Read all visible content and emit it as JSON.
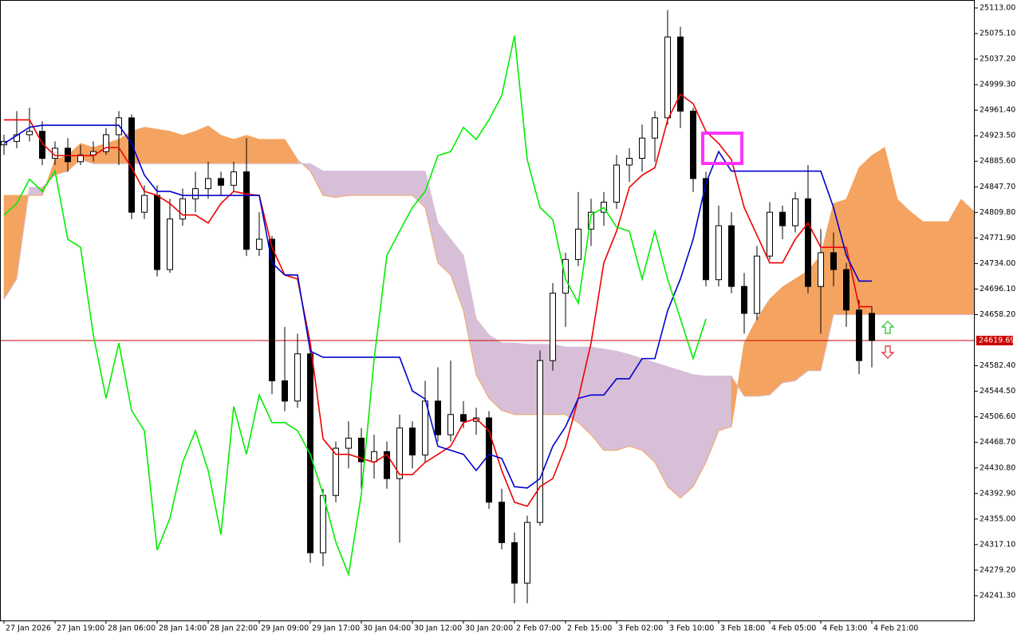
{
  "chart_data": {
    "type": "candlestick",
    "ylim": [
      24204.6,
      25124.8
    ],
    "yticks": [
      {
        "value": 25113,
        "label": "25113.00"
      },
      {
        "value": 25075.1,
        "label": "25075.10"
      },
      {
        "value": 25037.2,
        "label": "25037.20"
      },
      {
        "value": 24999.3,
        "label": "24999.30"
      },
      {
        "value": 24961.4,
        "label": "24961.40"
      },
      {
        "value": 24923.5,
        "label": "24923.50"
      },
      {
        "value": 24885.6,
        "label": "24885.60"
      },
      {
        "value": 24847.7,
        "label": "24847.70"
      },
      {
        "value": 24809.8,
        "label": "24809.80"
      },
      {
        "value": 24771.9,
        "label": "24771.90"
      },
      {
        "value": 24734,
        "label": "24734.00"
      },
      {
        "value": 24696.1,
        "label": "24696.10"
      },
      {
        "value": 24658.2,
        "label": "24658.20"
      },
      {
        "value": 24582.4,
        "label": "24582.40"
      },
      {
        "value": 24544.5,
        "label": "24544.50"
      },
      {
        "value": 24506.6,
        "label": "24506.60"
      },
      {
        "value": 24468.7,
        "label": "24468.70"
      },
      {
        "value": 24430.8,
        "label": "24430.80"
      },
      {
        "value": 24392.9,
        "label": "24392.90"
      },
      {
        "value": 24355,
        "label": "24355.00"
      },
      {
        "value": 24317.1,
        "label": "24317.10"
      },
      {
        "value": 24279.2,
        "label": "24279.20"
      },
      {
        "value": 24241.3,
        "label": "24241.30"
      }
    ],
    "current_price": 24619.69,
    "current_price_color": "#cc0000",
    "categories": [
      "27 Jan 2026",
      null,
      null,
      null,
      "27 Jan 19:00",
      null,
      null,
      null,
      "28 Jan 06:00",
      null,
      null,
      null,
      "28 Jan 14:00",
      null,
      null,
      null,
      "28 Jan 22:00",
      null,
      null,
      null,
      "29 Jan 09:00",
      null,
      null,
      null,
      "29 Jan 17:00",
      null,
      null,
      null,
      "30 Jan 04:00",
      null,
      null,
      null,
      "30 Jan 12:00",
      null,
      null,
      null,
      "30 Jan 20:00",
      null,
      null,
      null,
      "2 Feb 07:00",
      null,
      null,
      null,
      "2 Feb 15:00",
      null,
      null,
      null,
      "3 Feb 02:00",
      null,
      null,
      null,
      "3 Feb 10:00",
      null,
      null,
      null,
      "3 Feb 18:00",
      null,
      null,
      null,
      "4 Feb 05:00",
      null,
      null,
      null,
      "4 Feb 13:00",
      null,
      null,
      null,
      "4 Feb 21:00",
      null,
      null,
      null,
      null,
      null,
      null,
      null,
      null
    ],
    "open": [
      24910,
      24915,
      24925,
      24930,
      24890,
      24905,
      24885,
      24895,
      24900,
      24925,
      24950,
      24810,
      24835,
      24725,
      24800,
      24830,
      24845,
      24860,
      24850,
      24870,
      24755,
      24770,
      24560,
      24530,
      24600,
      24305,
      24390,
      24460,
      24475,
      24440,
      24455,
      24415,
      24490,
      24450,
      24530,
      24480,
      24510,
      24500,
      24505,
      24380,
      24320,
      24260,
      24350,
      24590,
      24690,
      24740,
      24785,
      24810,
      24825,
      24880,
      24890,
      24920,
      24950,
      25070,
      24960,
      24860,
      24710,
      24790,
      24700,
      24660,
      24745,
      24810,
      24790,
      24830,
      24700,
      24750,
      24725,
      24665,
      24660,
      null,
      null,
      null,
      null,
      null,
      null,
      null,
      null
    ],
    "high": [
      24925,
      24960,
      24965,
      24945,
      24915,
      24920,
      24910,
      24915,
      24935,
      24960,
      24955,
      24850,
      24850,
      24830,
      24845,
      24870,
      24885,
      24870,
      24885,
      24920,
      24810,
      24775,
      24640,
      24630,
      24610,
      24400,
      24470,
      24500,
      24490,
      24480,
      24470,
      24510,
      24500,
      24560,
      24580,
      24590,
      24530,
      24520,
      24515,
      24400,
      24335,
      24360,
      24605,
      24705,
      24750,
      24840,
      24830,
      24840,
      24895,
      24905,
      24940,
      24960,
      25110,
      25085,
      24965,
      24870,
      24820,
      24810,
      24720,
      24760,
      24825,
      24820,
      24840,
      24880,
      24785,
      24780,
      24735,
      24680,
      24670,
      null,
      null,
      null,
      null,
      null,
      null,
      null,
      null
    ],
    "low": [
      24895,
      24905,
      24915,
      24880,
      24880,
      24870,
      24880,
      24885,
      24895,
      24880,
      24800,
      24800,
      24715,
      24720,
      24790,
      24810,
      24830,
      24835,
      24840,
      24745,
      24745,
      24540,
      24515,
      24520,
      24290,
      24285,
      24380,
      24430,
      24400,
      24415,
      24400,
      24320,
      24430,
      24440,
      24470,
      24470,
      24490,
      24480,
      24370,
      24310,
      24230,
      24230,
      24345,
      24575,
      24640,
      24730,
      24760,
      24790,
      24815,
      24855,
      24870,
      24885,
      24940,
      24935,
      24840,
      24700,
      24700,
      24690,
      24630,
      24650,
      24740,
      24770,
      24780,
      24690,
      24630,
      24700,
      24640,
      24570,
      24580,
      null,
      null,
      null,
      null,
      null,
      null,
      null,
      null
    ],
    "close": [
      24915,
      24925,
      24930,
      24890,
      24905,
      24885,
      24895,
      24900,
      24925,
      24950,
      24810,
      24835,
      24725,
      24800,
      24830,
      24845,
      24860,
      24850,
      24870,
      24755,
      24770,
      24560,
      24530,
      24600,
      24305,
      24390,
      24460,
      24475,
      24440,
      24455,
      24415,
      24490,
      24450,
      24530,
      24480,
      24510,
      24500,
      24505,
      24380,
      24320,
      24260,
      24350,
      24590,
      24690,
      24740,
      24785,
      24810,
      24825,
      24880,
      24890,
      24920,
      24950,
      25070,
      24960,
      24860,
      24710,
      24790,
      24700,
      24660,
      24745,
      24810,
      24790,
      24830,
      24700,
      24750,
      24725,
      24665,
      24590,
      24619.69,
      null,
      null,
      null,
      null,
      null,
      null,
      null,
      null
    ],
    "up_color": "#ffffff",
    "down_color": "#000000",
    "wick_color": "#000000",
    "lines": [
      {
        "color": "#ee0000",
        "values": [
          24947,
          24947,
          24947,
          24912,
          24894,
          24894,
          24894,
          24894,
          24906,
          24906,
          24876,
          24841,
          24835,
          24823,
          24806,
          24806,
          24794,
          24823,
          24841,
          24837,
          24835,
          24758,
          24717,
          24711,
          24616,
          24474,
          24451,
          24451,
          24445,
          24439,
          24451,
          24421,
          24421,
          24439,
          24451,
          24463,
          24498,
          24504,
          24486,
          24427,
          24380,
          24374,
          24403,
          24415,
          24463,
          24534,
          24616,
          24735,
          24782,
          24847,
          24865,
          24876,
          24947,
          24985,
          24971,
          24930,
          24912,
          24888,
          24817,
          24776,
          24735,
          24735,
          24770,
          24794,
          24758,
          24758,
          24758,
          24670,
          24670,
          null,
          null,
          null,
          null,
          null,
          null,
          null,
          null
        ]
      },
      {
        "color": "#0000cc",
        "values": [
          24912,
          24924,
          24936,
          24939,
          24939,
          24939,
          24939,
          24939,
          24939,
          24939,
          24912,
          24865,
          24841,
          24841,
          24835,
          24835,
          24835,
          24835,
          24835,
          24835,
          24835,
          24735,
          24717,
          24717,
          24604,
          24595,
          24595,
          24595,
          24595,
          24595,
          24595,
          24595,
          24545,
          24533,
          24463,
          24457,
          24451,
          24427,
          24451,
          24445,
          24403,
          24401,
          24415,
          24463,
          24492,
          24534,
          24539,
          24539,
          24563,
          24563,
          24593,
          24593,
          24664,
          24711,
          24770,
          24853,
          24900,
          24871,
          24871,
          24871,
          24871,
          24871,
          24871,
          24871,
          24871,
          24817,
          24746,
          24708,
          24708,
          null,
          null,
          null,
          null,
          null,
          null,
          null,
          null
        ]
      },
      {
        "color": "#00ee00",
        "values": [
          24806,
          24823,
          24859,
          24841,
          24871,
          24770,
          24758,
          24628,
          24534,
          24616,
          24516,
          24486,
          24309,
          24356,
          24439,
          24486,
          24427,
          24332,
          24522,
          24451,
          24539,
          24498,
          24498,
          24486,
          24451,
          24392,
          24321,
          24273,
          24392,
          24592,
          24746,
          24782,
          24817,
          24841,
          24894,
          24900,
          24936,
          24918,
          24947,
          24983,
          25072,
          24888,
          24817,
          24799,
          24711,
          24675,
          24806,
          24817,
          24788,
          24782,
          24711,
          24782,
          24711,
          24652,
          24593,
          24652,
          null,
          null,
          null,
          null,
          null,
          null,
          null,
          null,
          null,
          null,
          null,
          null,
          null,
          null,
          null,
          null,
          null,
          null,
          null,
          null,
          null
        ]
      }
    ],
    "cloud": {
      "span_a": [
        24835,
        24835,
        24835,
        24835,
        24888,
        24894,
        24912,
        24906,
        24912,
        24918,
        24930,
        24936,
        24933,
        24930,
        24924,
        24930,
        24938,
        24924,
        24918,
        24924,
        24918,
        24918,
        24918,
        24888,
        24871,
        24835,
        24832,
        24835,
        24835,
        24835,
        24835,
        24835,
        24835,
        24817,
        24735,
        24717,
        24664,
        24569,
        24534,
        24516,
        24510,
        24510,
        24510,
        24510,
        24510,
        24498,
        24480,
        24457,
        24457,
        24463,
        24457,
        24439,
        24403,
        24386,
        24403,
        24439,
        24486,
        24492,
        24616,
        24652,
        24681,
        24699,
        24711,
        24723,
        24746,
        24823,
        24829,
        24876,
        24894,
        24906,
        24829,
        24811,
        24796,
        24796,
        24796,
        24829,
        24811
      ],
      "span_b": [
        24681,
        24711,
        24847,
        24847,
        24865,
        24871,
        24888,
        24882,
        24882,
        24882,
        24882,
        24882,
        24882,
        24882,
        24882,
        24882,
        24882,
        24882,
        24882,
        24882,
        24882,
        24882,
        24882,
        24882,
        24882,
        24871,
        24871,
        24871,
        24871,
        24871,
        24871,
        24871,
        24871,
        24871,
        24794,
        24770,
        24746,
        24652,
        24628,
        24616,
        24616,
        24614,
        24614,
        24614,
        24610,
        24610,
        24610,
        24607,
        24604,
        24599,
        24593,
        24587,
        24581,
        24575,
        24569,
        24567,
        24567,
        24567,
        24537,
        24537,
        24539,
        24557,
        24560,
        24575,
        24575,
        24658,
        24658,
        24658,
        24658,
        24658,
        24658,
        24658,
        24658,
        24658,
        24658,
        24658,
        24658
      ],
      "up_color": "#f4a460",
      "down_color": "#d8bfd8"
    }
  }
}
